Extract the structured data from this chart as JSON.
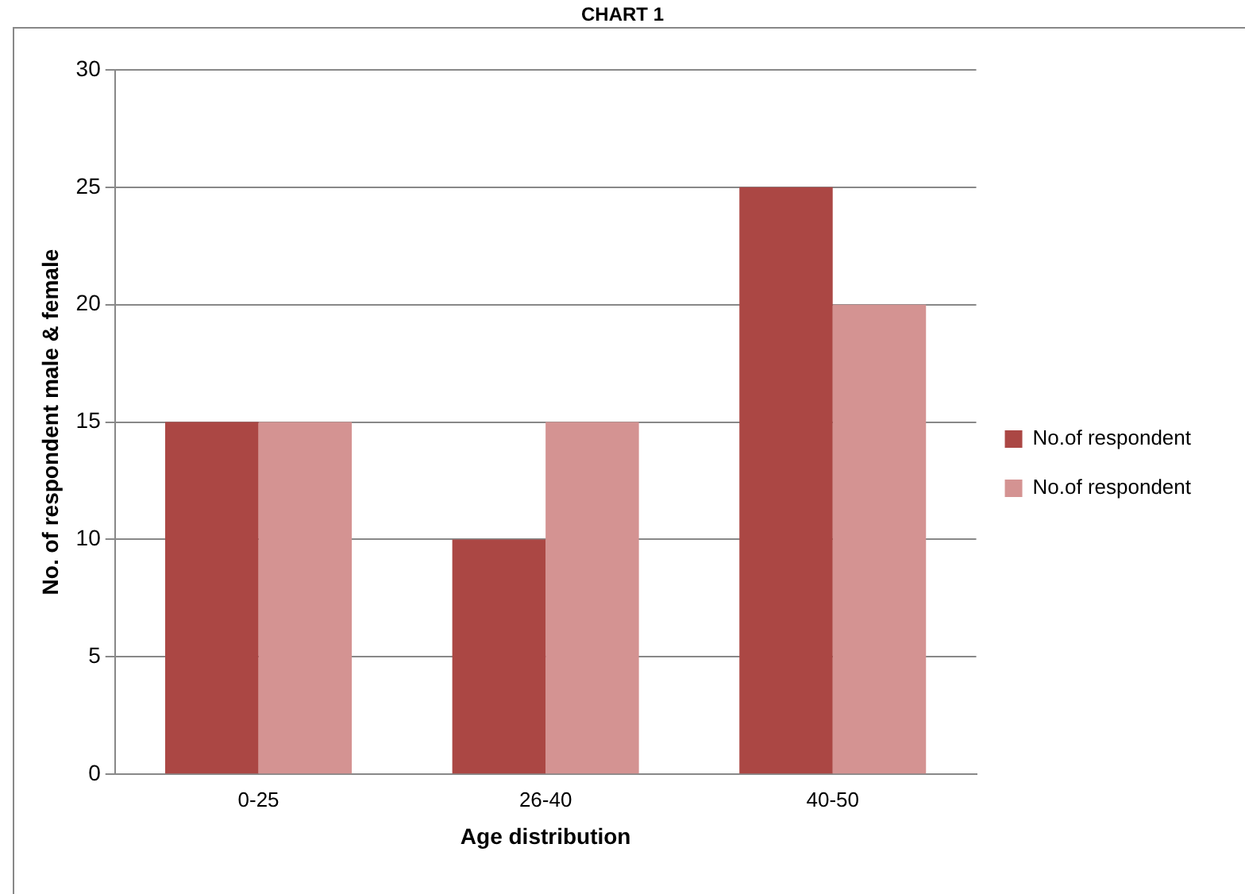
{
  "chart_data": {
    "type": "bar",
    "title": "CHART 1",
    "xlabel": "Age distribution",
    "ylabel": "No. of respondent male & female",
    "categories": [
      "0-25",
      "26-40",
      "40-50"
    ],
    "series": [
      {
        "name": "No.of respondent",
        "color": "#ab4744",
        "values": [
          15,
          10,
          25
        ]
      },
      {
        "name": "No.of respondent",
        "color": "#d49392",
        "values": [
          15,
          15,
          20
        ]
      }
    ],
    "ylim": [
      0,
      30
    ],
    "yticks": [
      0,
      5,
      10,
      15,
      20,
      25,
      30
    ],
    "grid": "y",
    "legend": "right"
  }
}
